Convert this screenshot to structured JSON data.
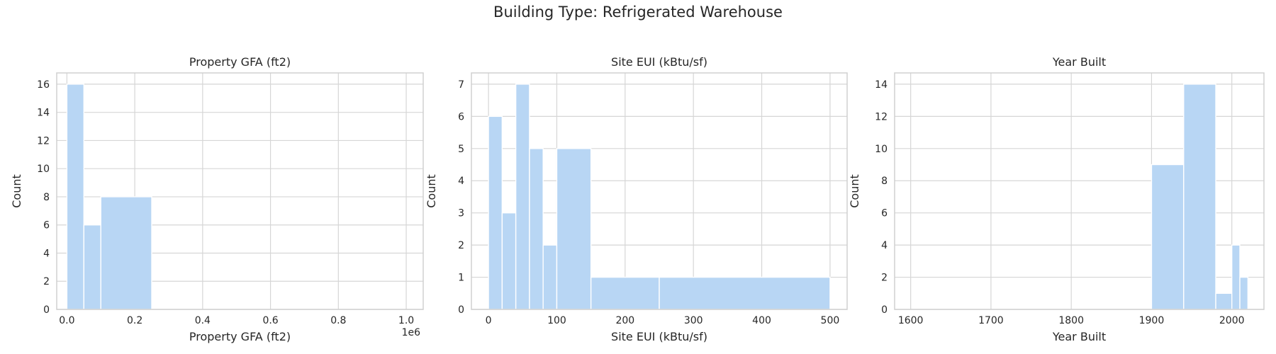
{
  "suptitle": "Building Type: Refrigerated Warehouse",
  "bar_color": "#b8d6f4",
  "grid_color": "#d6d6d6",
  "chart_data": [
    {
      "type": "histogram",
      "title": "Property GFA (ft2)",
      "xlabel": "Property GFA (ft2)",
      "ylabel": "Count",
      "xlim": [
        -30000,
        1050000
      ],
      "ylim": [
        0,
        16.8
      ],
      "x_ticks": [
        0,
        200000,
        400000,
        600000,
        800000,
        1000000
      ],
      "x_tick_labels": [
        "0.0",
        "0.2",
        "0.4",
        "0.6",
        "0.8",
        "1.0"
      ],
      "y_ticks": [
        0,
        2,
        4,
        6,
        8,
        10,
        12,
        14,
        16
      ],
      "offset_label": "1e6",
      "bins": [
        {
          "x0": 0,
          "x1": 50000,
          "count": 16
        },
        {
          "x0": 50000,
          "x1": 100000,
          "count": 6
        },
        {
          "x0": 100000,
          "x1": 250000,
          "count": 8
        }
      ]
    },
    {
      "type": "histogram",
      "title": "Site EUI (kBtu/sf)",
      "xlabel": "Site EUI (kBtu/sf)",
      "ylabel": "Count",
      "xlim": [
        -25,
        525
      ],
      "ylim": [
        0,
        7.35
      ],
      "x_ticks": [
        0,
        100,
        200,
        300,
        400,
        500
      ],
      "x_tick_labels": [
        "0",
        "100",
        "200",
        "300",
        "400",
        "500"
      ],
      "y_ticks": [
        0,
        1,
        2,
        3,
        4,
        5,
        6,
        7
      ],
      "bins": [
        {
          "x0": 0,
          "x1": 20,
          "count": 6
        },
        {
          "x0": 20,
          "x1": 40,
          "count": 3
        },
        {
          "x0": 40,
          "x1": 60,
          "count": 7
        },
        {
          "x0": 60,
          "x1": 80,
          "count": 5
        },
        {
          "x0": 80,
          "x1": 100,
          "count": 2
        },
        {
          "x0": 100,
          "x1": 150,
          "count": 5
        },
        {
          "x0": 150,
          "x1": 250,
          "count": 1
        },
        {
          "x0": 250,
          "x1": 500,
          "count": 1
        }
      ]
    },
    {
      "type": "histogram",
      "title": "Year Built",
      "xlabel": "Year Built",
      "ylabel": "Count",
      "xlim": [
        1580,
        2040
      ],
      "ylim": [
        0,
        14.7
      ],
      "x_ticks": [
        1600,
        1700,
        1800,
        1900,
        2000
      ],
      "x_tick_labels": [
        "1600",
        "1700",
        "1800",
        "1900",
        "2000"
      ],
      "y_ticks": [
        0,
        2,
        4,
        6,
        8,
        10,
        12,
        14
      ],
      "bins": [
        {
          "x0": 1900,
          "x1": 1940,
          "count": 9
        },
        {
          "x0": 1940,
          "x1": 1980,
          "count": 14
        },
        {
          "x0": 1980,
          "x1": 2000,
          "count": 1
        },
        {
          "x0": 2000,
          "x1": 2010,
          "count": 4
        },
        {
          "x0": 2010,
          "x1": 2020,
          "count": 2
        }
      ]
    }
  ]
}
